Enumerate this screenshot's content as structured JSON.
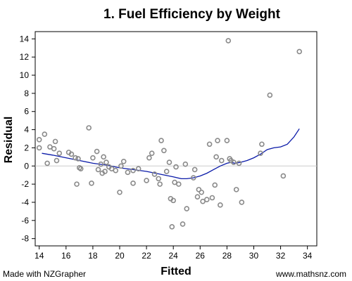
{
  "header": {
    "title": "1. Fuel Efficiency by Weight"
  },
  "footer": {
    "left": "Made with NZGrapher",
    "right": "www.mathsnz.com"
  },
  "colors": {
    "points": "#8a8a8a",
    "trend": "#0a1aa8",
    "zero_line": "#cccccc",
    "axis": "#000000"
  },
  "chart_data": {
    "type": "scatter",
    "title": "1. Fuel Efficiency by Weight",
    "xlabel": "Fitted",
    "ylabel": "Residual",
    "xlim": [
      13.7,
      34.7
    ],
    "ylim": [
      -8.8,
      14.8
    ],
    "xticks": [
      14,
      16,
      18,
      20,
      22,
      24,
      26,
      28,
      30,
      32,
      34
    ],
    "yticks": [
      -8,
      -6,
      -4,
      -2,
      0,
      2,
      4,
      6,
      8,
      10,
      12,
      14
    ],
    "grid": false,
    "zero_reference_line": 0,
    "points": [
      {
        "x": 14.0,
        "y": 2.9
      },
      {
        "x": 14.0,
        "y": 2.0
      },
      {
        "x": 14.4,
        "y": 3.5
      },
      {
        "x": 14.6,
        "y": 0.3
      },
      {
        "x": 14.8,
        "y": 2.1
      },
      {
        "x": 15.1,
        "y": 1.9
      },
      {
        "x": 15.2,
        "y": 2.7
      },
      {
        "x": 15.3,
        "y": 0.6
      },
      {
        "x": 15.5,
        "y": 1.4
      },
      {
        "x": 16.2,
        "y": 1.5
      },
      {
        "x": 16.4,
        "y": 1.3
      },
      {
        "x": 16.7,
        "y": 0.9
      },
      {
        "x": 16.8,
        "y": -2.0
      },
      {
        "x": 16.9,
        "y": 0.8
      },
      {
        "x": 17.0,
        "y": -0.2
      },
      {
        "x": 17.1,
        "y": -0.3
      },
      {
        "x": 17.7,
        "y": 4.2
      },
      {
        "x": 17.9,
        "y": -1.9
      },
      {
        "x": 18.0,
        "y": 0.9
      },
      {
        "x": 18.3,
        "y": 1.6
      },
      {
        "x": 18.4,
        "y": -0.4
      },
      {
        "x": 18.6,
        "y": 0.2
      },
      {
        "x": 18.8,
        "y": 1.0
      },
      {
        "x": 18.7,
        "y": -0.8
      },
      {
        "x": 18.9,
        "y": -0.6
      },
      {
        "x": 19.0,
        "y": 0.4
      },
      {
        "x": 19.2,
        "y": -0.1
      },
      {
        "x": 19.4,
        "y": -0.3
      },
      {
        "x": 19.7,
        "y": -0.5
      },
      {
        "x": 20.0,
        "y": -2.9
      },
      {
        "x": 20.1,
        "y": 0.0
      },
      {
        "x": 20.3,
        "y": 0.5
      },
      {
        "x": 20.6,
        "y": -0.7
      },
      {
        "x": 21.0,
        "y": -1.9
      },
      {
        "x": 21.0,
        "y": -0.5
      },
      {
        "x": 21.4,
        "y": -0.3
      },
      {
        "x": 22.0,
        "y": -1.6
      },
      {
        "x": 22.2,
        "y": 0.9
      },
      {
        "x": 22.4,
        "y": 1.4
      },
      {
        "x": 22.6,
        "y": -0.9
      },
      {
        "x": 22.9,
        "y": -1.4
      },
      {
        "x": 23.0,
        "y": -2.0
      },
      {
        "x": 23.1,
        "y": 2.8
      },
      {
        "x": 23.3,
        "y": 1.7
      },
      {
        "x": 23.5,
        "y": -0.6
      },
      {
        "x": 23.7,
        "y": 0.4
      },
      {
        "x": 23.8,
        "y": -3.6
      },
      {
        "x": 23.9,
        "y": -6.7
      },
      {
        "x": 24.0,
        "y": -3.8
      },
      {
        "x": 24.1,
        "y": -1.8
      },
      {
        "x": 24.2,
        "y": -0.1
      },
      {
        "x": 24.4,
        "y": -2.0
      },
      {
        "x": 24.7,
        "y": -6.4
      },
      {
        "x": 24.9,
        "y": 0.2
      },
      {
        "x": 25.0,
        "y": -4.7
      },
      {
        "x": 25.5,
        "y": -1.3
      },
      {
        "x": 25.6,
        "y": -0.4
      },
      {
        "x": 25.8,
        "y": -3.4
      },
      {
        "x": 25.9,
        "y": -2.6
      },
      {
        "x": 26.1,
        "y": -2.9
      },
      {
        "x": 26.2,
        "y": -3.9
      },
      {
        "x": 26.5,
        "y": -3.7
      },
      {
        "x": 26.7,
        "y": 2.4
      },
      {
        "x": 26.9,
        "y": -3.5
      },
      {
        "x": 27.1,
        "y": -2.1
      },
      {
        "x": 27.2,
        "y": 1.0
      },
      {
        "x": 27.3,
        "y": 2.8
      },
      {
        "x": 27.5,
        "y": -4.3
      },
      {
        "x": 27.6,
        "y": 0.6
      },
      {
        "x": 28.0,
        "y": 2.8
      },
      {
        "x": 28.1,
        "y": 13.8
      },
      {
        "x": 28.2,
        "y": 0.8
      },
      {
        "x": 28.3,
        "y": 0.6
      },
      {
        "x": 28.5,
        "y": 0.4
      },
      {
        "x": 28.7,
        "y": -2.6
      },
      {
        "x": 28.9,
        "y": 0.3
      },
      {
        "x": 29.1,
        "y": -4.0
      },
      {
        "x": 30.5,
        "y": 1.4
      },
      {
        "x": 30.6,
        "y": 2.4
      },
      {
        "x": 31.2,
        "y": 7.8
      },
      {
        "x": 32.2,
        "y": -1.1
      },
      {
        "x": 33.4,
        "y": 12.6
      }
    ],
    "trend_line": {
      "x": [
        14.2,
        15,
        16,
        17,
        18,
        19,
        20,
        21,
        22,
        23,
        24,
        24.6,
        25,
        25.5,
        26,
        26.5,
        27,
        27.5,
        28,
        28.3,
        28.6,
        29,
        29.5,
        30,
        30.5,
        31,
        31.5,
        32,
        32.5,
        33,
        33.4
      ],
      "y": [
        1.4,
        1.2,
        0.9,
        0.6,
        0.3,
        0.1,
        -0.2,
        -0.4,
        -0.6,
        -0.9,
        -1.2,
        -1.4,
        -1.4,
        -1.3,
        -1.1,
        -0.8,
        -0.4,
        0.0,
        0.3,
        0.4,
        0.3,
        0.4,
        0.6,
        0.9,
        1.3,
        1.8,
        2.0,
        2.1,
        2.4,
        3.2,
        4.1
      ]
    }
  }
}
